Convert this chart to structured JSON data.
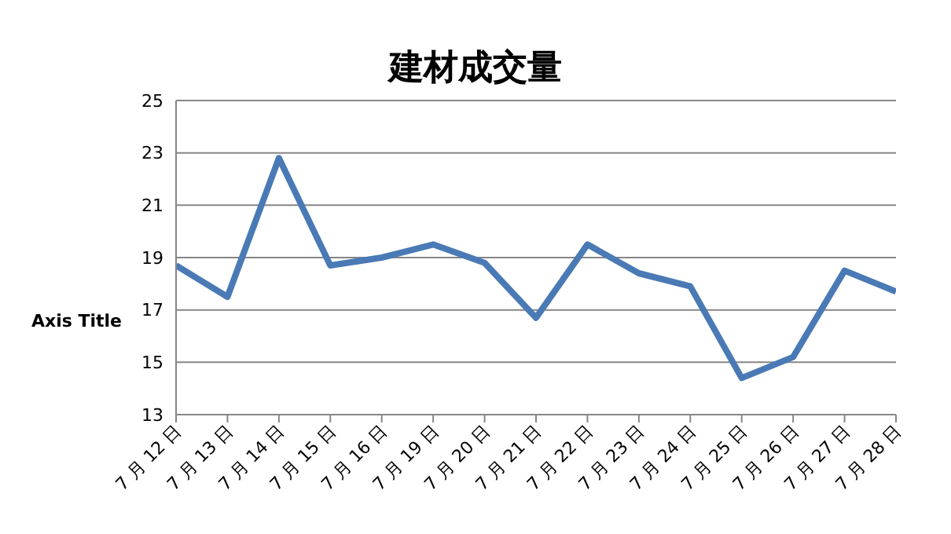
{
  "chart_data": {
    "type": "line",
    "title": "建材成交量",
    "ylabel": "Axis Title",
    "categories": [
      "7 月 12 日",
      "7 月 13 日",
      "7 月 14 日",
      "7 月 15 日",
      "7 月 16 日",
      "7 月 19 日",
      "7 月 20 日",
      "7 月 21 日",
      "7 月 22 日",
      "7 月 23 日",
      "7 月 24 日",
      "7 月 25 日",
      "7 月 26 日",
      "7 月 27 日",
      "7 月 28 日"
    ],
    "series": [
      {
        "color": "#4a7ab5",
        "values": [
          18.7,
          17.5,
          22.8,
          18.7,
          19.0,
          19.5,
          18.8,
          16.7,
          19.5,
          18.4,
          17.9,
          14.4,
          15.2,
          18.5,
          17.7
        ]
      }
    ],
    "ylim": [
      13,
      25
    ],
    "yticks": [
      13,
      15,
      17,
      19,
      21,
      23,
      25
    ],
    "grid": "y",
    "legend": false,
    "marker": "none",
    "line_style": "solid"
  }
}
